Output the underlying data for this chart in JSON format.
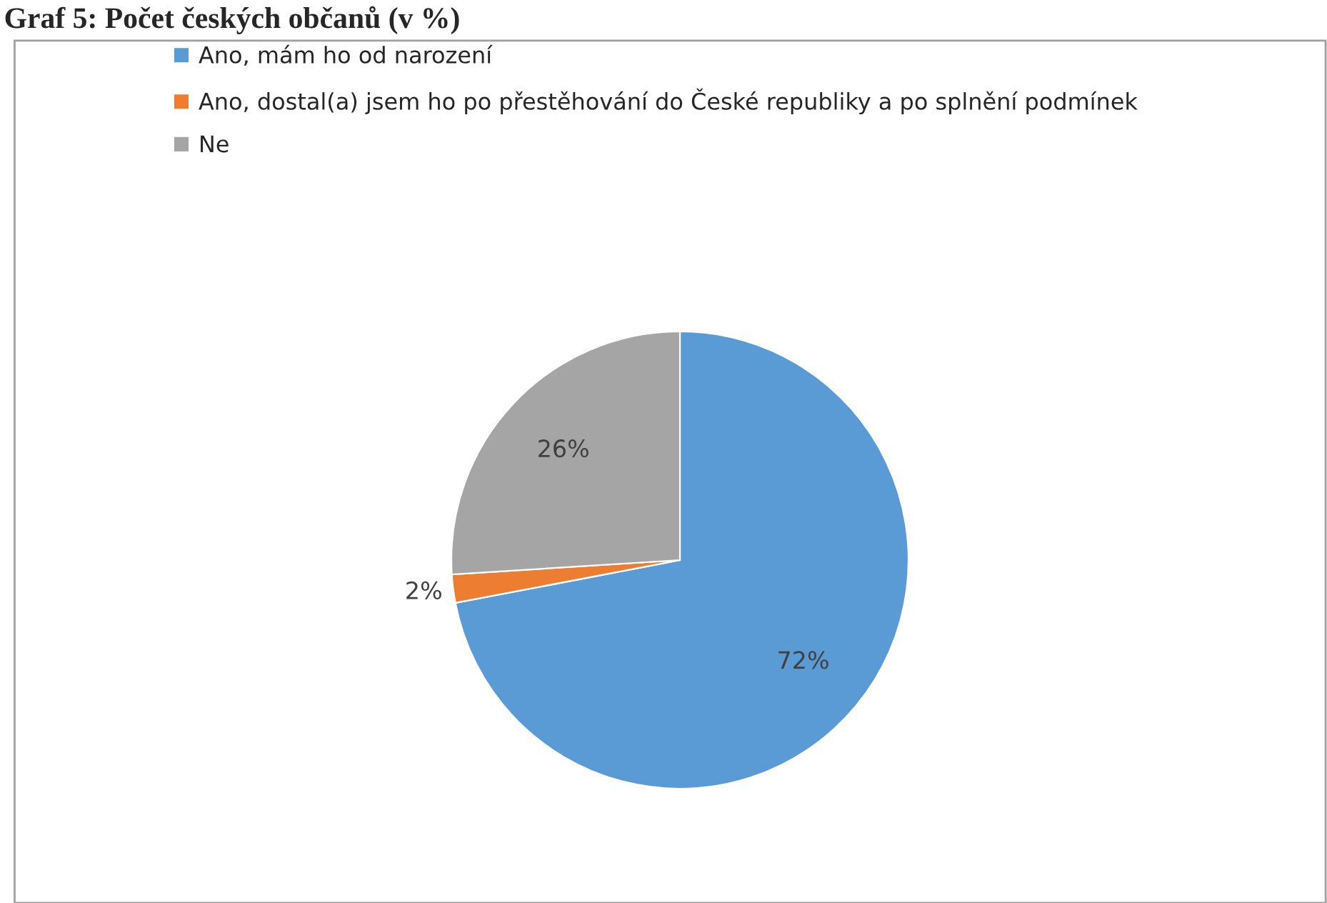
{
  "chart_data": {
    "type": "pie",
    "title": "Graf 5: Počet českých občanů (v %)",
    "categories": [
      "Ano, mám ho od narození",
      "Ano, dostal(a) jsem ho po přestěhování do České republiky a po splnění podmínek",
      "Ne"
    ],
    "values": [
      72,
      2,
      26
    ],
    "colors": [
      "#5b9bd5",
      "#ed7d31",
      "#a5a5a5"
    ],
    "value_labels": [
      "72%",
      "2%",
      "26%"
    ],
    "legend": "top left"
  }
}
